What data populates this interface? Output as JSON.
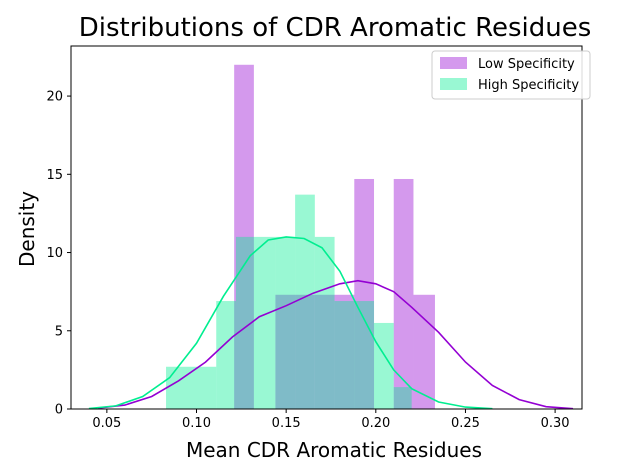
{
  "chart_data": {
    "type": "histogram",
    "title": "Distributions of CDR Aromatic Residues",
    "xlabel": "Mean CDR Aromatic Residues",
    "ylabel": "Density",
    "xlim": [
      0.03,
      0.315
    ],
    "ylim": [
      0,
      23.2
    ],
    "xticks": [
      0.05,
      0.1,
      0.15,
      0.2,
      0.25,
      0.3
    ],
    "xtick_labels": [
      "0.05",
      "0.10",
      "0.15",
      "0.20",
      "0.25",
      "0.30"
    ],
    "yticks": [
      0,
      5,
      10,
      15,
      20
    ],
    "ytick_labels": [
      "0",
      "5",
      "10",
      "15",
      "20"
    ],
    "legend_position": "top-right",
    "grid": false,
    "series": [
      {
        "name": "Low Specificity",
        "color": "#9400d3",
        "bins": [
          {
            "x0": 0.121,
            "x1": 0.132,
            "value": 22.0
          },
          {
            "x0": 0.144,
            "x1": 0.155,
            "value": 7.3
          },
          {
            "x0": 0.155,
            "x1": 0.166,
            "value": 7.3
          },
          {
            "x0": 0.166,
            "x1": 0.177,
            "value": 7.3
          },
          {
            "x0": 0.177,
            "x1": 0.188,
            "value": 7.3
          },
          {
            "x0": 0.188,
            "x1": 0.199,
            "value": 14.7
          },
          {
            "x0": 0.21,
            "x1": 0.221,
            "value": 14.7
          },
          {
            "x0": 0.221,
            "x1": 0.233,
            "value": 7.3
          }
        ],
        "kde": [
          [
            0.045,
            0.06
          ],
          [
            0.06,
            0.25
          ],
          [
            0.075,
            0.8
          ],
          [
            0.09,
            1.8
          ],
          [
            0.105,
            3.0
          ],
          [
            0.12,
            4.6
          ],
          [
            0.135,
            5.9
          ],
          [
            0.15,
            6.6
          ],
          [
            0.165,
            7.4
          ],
          [
            0.18,
            8.0
          ],
          [
            0.19,
            8.2
          ],
          [
            0.2,
            8.0
          ],
          [
            0.21,
            7.5
          ],
          [
            0.22,
            6.5
          ],
          [
            0.235,
            4.9
          ],
          [
            0.25,
            3.0
          ],
          [
            0.265,
            1.5
          ],
          [
            0.28,
            0.6
          ],
          [
            0.295,
            0.15
          ],
          [
            0.31,
            0.02
          ]
        ]
      },
      {
        "name": "High Specificity",
        "color": "#00ee90",
        "bins": [
          {
            "x0": 0.083,
            "x1": 0.111,
            "value": 2.7
          },
          {
            "x0": 0.111,
            "x1": 0.122,
            "value": 6.9
          },
          {
            "x0": 0.122,
            "x1": 0.144,
            "value": 11.0
          },
          {
            "x0": 0.144,
            "x1": 0.155,
            "value": 11.0
          },
          {
            "x0": 0.155,
            "x1": 0.166,
            "value": 13.7
          },
          {
            "x0": 0.166,
            "x1": 0.177,
            "value": 11.0
          },
          {
            "x0": 0.177,
            "x1": 0.199,
            "value": 6.9
          },
          {
            "x0": 0.199,
            "x1": 0.21,
            "value": 5.5
          },
          {
            "x0": 0.21,
            "x1": 0.22,
            "value": 1.4
          }
        ],
        "kde": [
          [
            0.04,
            0.03
          ],
          [
            0.055,
            0.2
          ],
          [
            0.07,
            0.8
          ],
          [
            0.085,
            2.0
          ],
          [
            0.1,
            4.2
          ],
          [
            0.115,
            7.2
          ],
          [
            0.13,
            9.8
          ],
          [
            0.14,
            10.8
          ],
          [
            0.15,
            11.0
          ],
          [
            0.16,
            10.9
          ],
          [
            0.17,
            10.3
          ],
          [
            0.18,
            8.8
          ],
          [
            0.19,
            6.5
          ],
          [
            0.2,
            4.3
          ],
          [
            0.21,
            2.5
          ],
          [
            0.22,
            1.3
          ],
          [
            0.235,
            0.45
          ],
          [
            0.25,
            0.12
          ],
          [
            0.265,
            0.02
          ]
        ]
      }
    ]
  }
}
